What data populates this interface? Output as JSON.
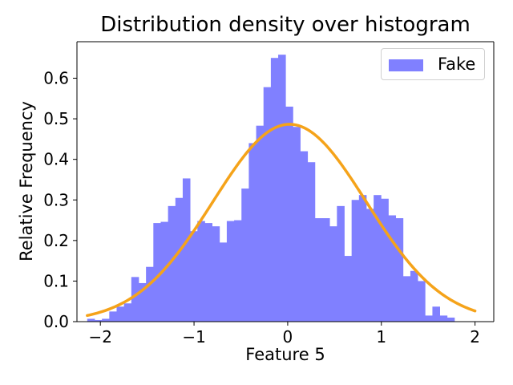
{
  "chart_data": {
    "type": "bar",
    "title": "Distribution density over histogram",
    "xlabel": "Feature 5",
    "ylabel": "Relative Frequency",
    "xlim": [
      -2.25,
      2.2
    ],
    "ylim": [
      0,
      0.69
    ],
    "x_ticks": [
      -2,
      -1,
      0,
      1,
      2
    ],
    "x_tick_labels": [
      "−2",
      "−1",
      "0",
      "1",
      "2"
    ],
    "y_ticks": [
      0.0,
      0.1,
      0.2,
      0.3,
      0.4,
      0.5,
      0.6
    ],
    "y_tick_labels": [
      "0.0",
      "0.1",
      "0.2",
      "0.3",
      "0.4",
      "0.5",
      "0.6"
    ],
    "legend": {
      "position": "top-right",
      "entries": [
        "Fake"
      ]
    },
    "bar_color": "#8080ff",
    "curve_color": "#f5a31a",
    "series": [
      {
        "name": "Fake",
        "type": "histogram",
        "bin_start": -2.14,
        "bin_width": 0.0784,
        "values": [
          0.007,
          0.004,
          0.007,
          0.025,
          0.037,
          0.045,
          0.11,
          0.095,
          0.135,
          0.243,
          0.246,
          0.285,
          0.305,
          0.353,
          0.223,
          0.248,
          0.243,
          0.235,
          0.195,
          0.248,
          0.25,
          0.328,
          0.44,
          0.483,
          0.578,
          0.65,
          0.658,
          0.53,
          0.48,
          0.42,
          0.393,
          0.255,
          0.255,
          0.235,
          0.285,
          0.162,
          0.3,
          0.312,
          0.278,
          0.312,
          0.303,
          0.262,
          0.255,
          0.112,
          0.125,
          0.1,
          0.015,
          0.037,
          0.015,
          0.01
        ]
      },
      {
        "name": "density",
        "type": "line",
        "x_range": [
          -2.14,
          2.0
        ],
        "mean": 0.02,
        "std": 0.82
      }
    ]
  }
}
